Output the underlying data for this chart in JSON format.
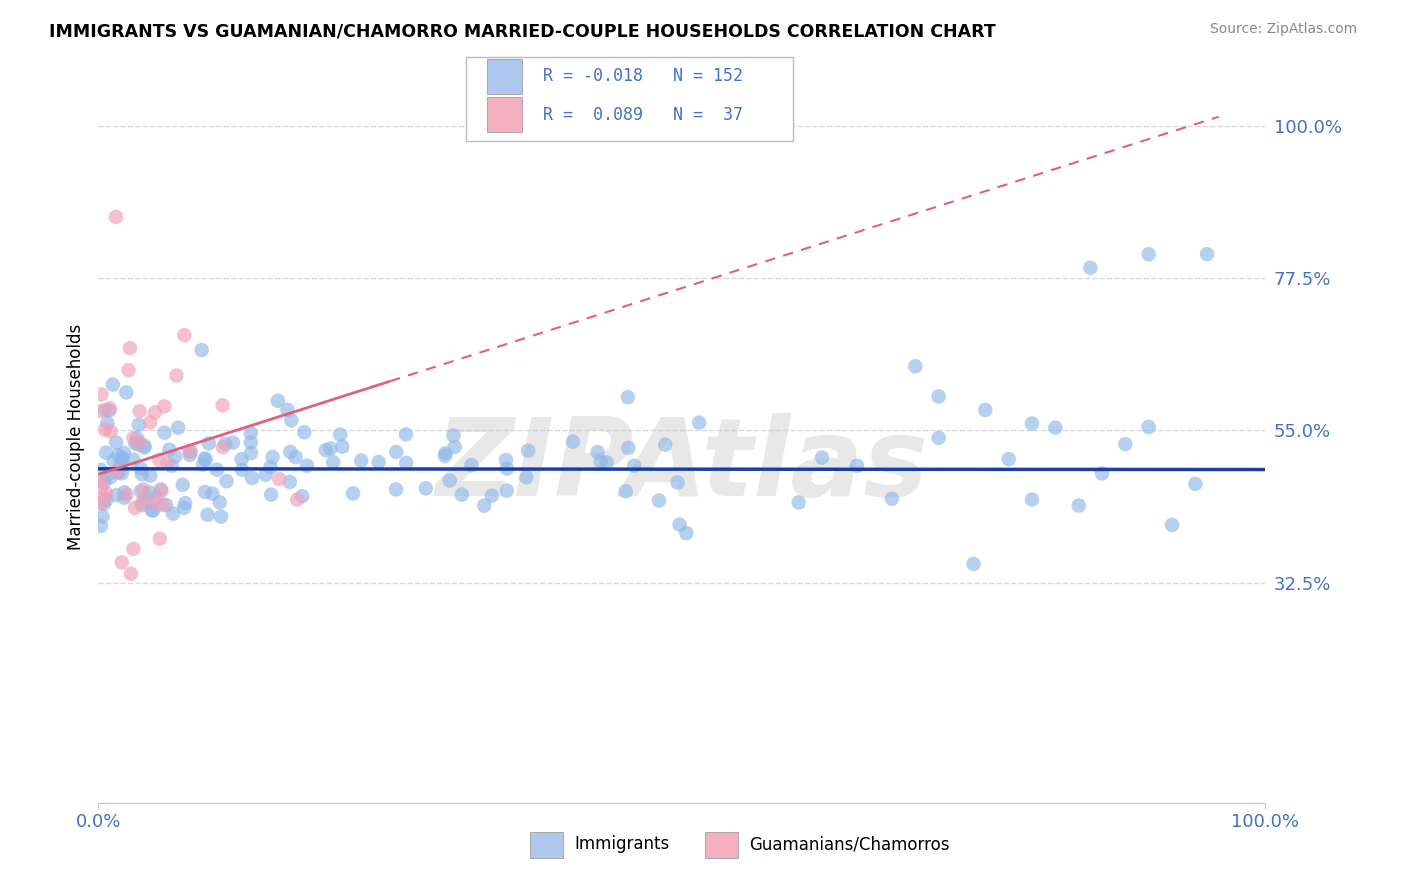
{
  "title": "IMMIGRANTS VS GUAMANIAN/CHAMORRO MARRIED-COUPLE HOUSEHOLDS CORRELATION CHART",
  "source": "Source: ZipAtlas.com",
  "ylabel": "Married-couple Households",
  "xlim": [
    0.0,
    1.0
  ],
  "ylim": [
    0.0,
    1.08
  ],
  "ytick_vals": [
    0.325,
    0.55,
    0.775,
    1.0
  ],
  "ytick_labels": [
    "32.5%",
    "55.0%",
    "77.5%",
    "100.0%"
  ],
  "blue_color": "#90b8e8",
  "pink_color": "#f0a0b8",
  "blue_line_color": "#1a3fa0",
  "pink_line_color": "#e06080",
  "legend_blue_color": "#aec8f0",
  "legend_pink_color": "#f4afc0",
  "watermark": "ZIPAtlas",
  "background_color": "#ffffff",
  "grid_color": "#d8d8d8",
  "seed": 42,
  "imm_N": 152,
  "gua_N": 37,
  "R_imm": -0.018,
  "R_gua": 0.089
}
